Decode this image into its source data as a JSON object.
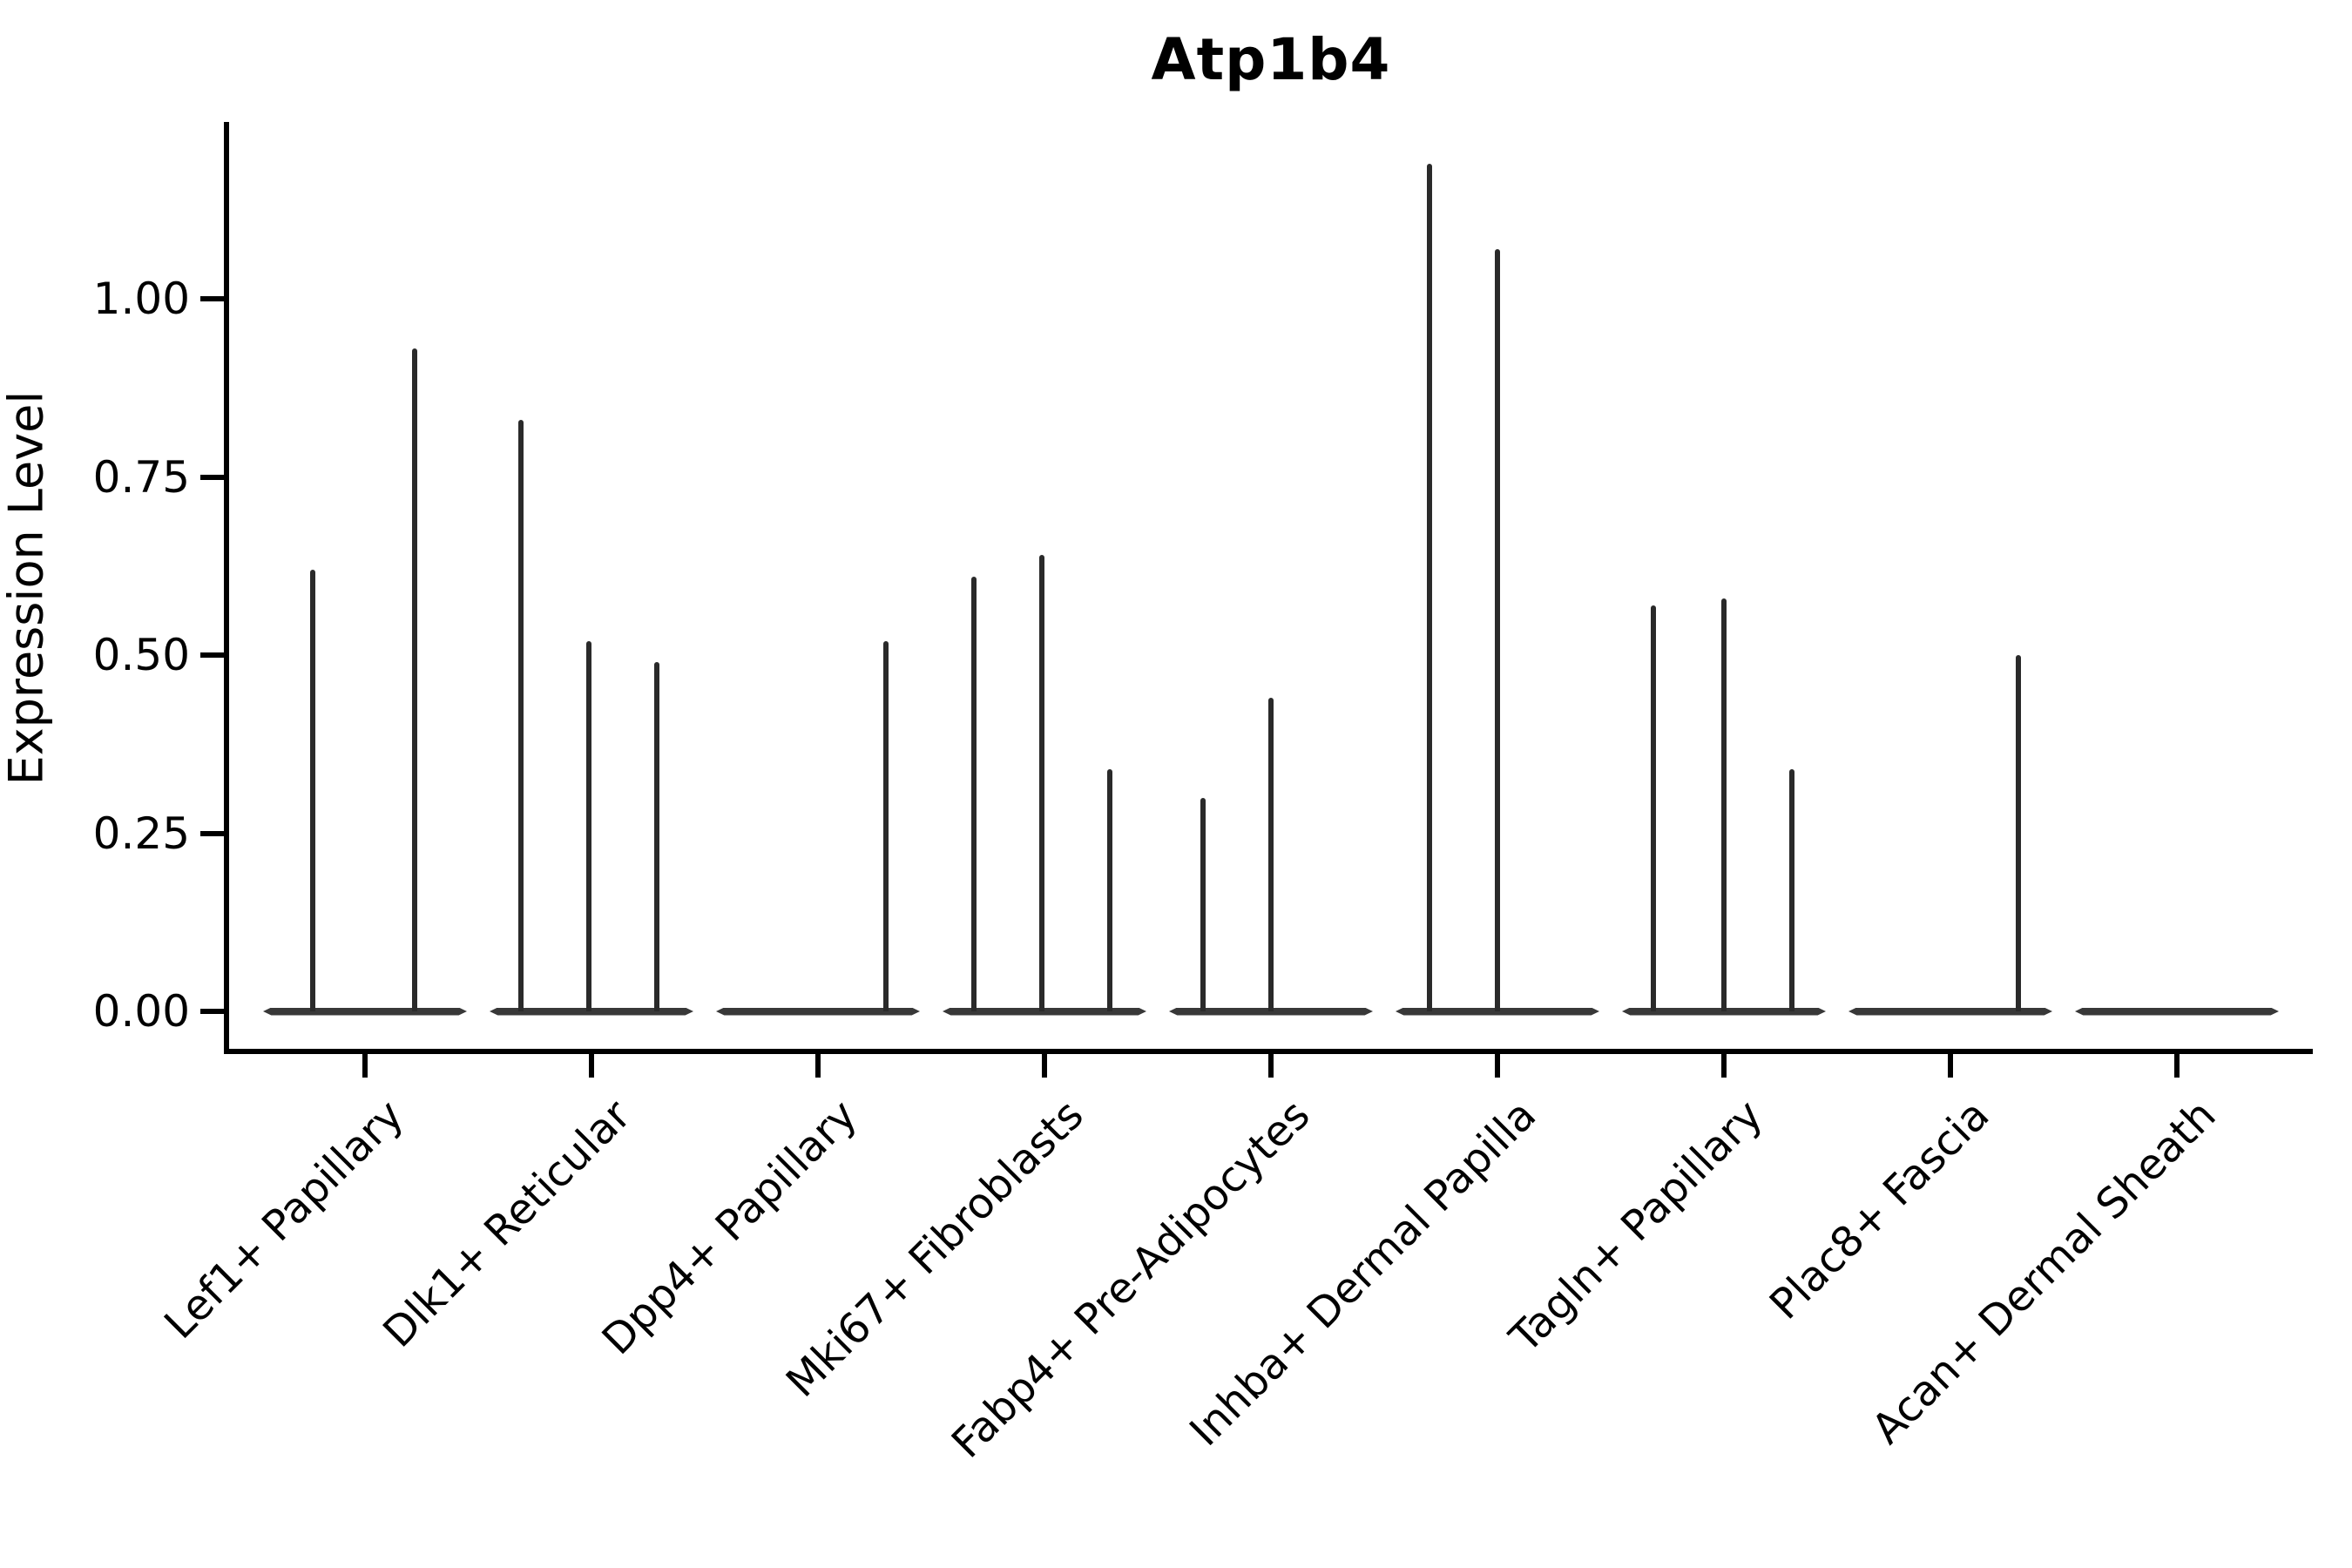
{
  "title": "Atp1b4",
  "colors": {
    "background": "#ffffff",
    "axis": "#000000",
    "text": "#000000",
    "violin_line": "#2a2a2a",
    "violin_baseline": "#383838"
  },
  "chart_data": {
    "type": "violin",
    "title": "Atp1b4",
    "xlabel": "",
    "ylabel": "Expression Level",
    "legend": "none",
    "grid": "off",
    "ylim": [
      -0.06,
      1.25
    ],
    "y_ticks": {
      "labels": [
        "0.00",
        "0.25",
        "0.50",
        "0.75",
        "1.00"
      ],
      "values": [
        0.0,
        0.25,
        0.5,
        0.75,
        1.0
      ]
    },
    "x_tick_rotation_deg": 45,
    "baseline_value": 0.0,
    "description": "Seurat-style violin plot of Atp1b4 expression; each cluster shows a flat violin at 0 with thin density spikes at positive expression values",
    "categories": [
      {
        "label": "Lef1+ Papillary",
        "spikes": [
          {
            "offset": -0.23,
            "value": 0.62
          },
          {
            "offset": 0.22,
            "value": 0.93
          }
        ]
      },
      {
        "label": "Dlk1+ Reticular",
        "spikes": [
          {
            "offset": -0.31,
            "value": 0.83
          },
          {
            "offset": -0.01,
            "value": 0.52
          },
          {
            "offset": 0.29,
            "value": 0.49
          }
        ]
      },
      {
        "label": "Dpp4+ Papillary",
        "spikes": [
          {
            "offset": 0.3,
            "value": 0.52
          }
        ]
      },
      {
        "label": "Mki67+ Fibroblasts",
        "spikes": [
          {
            "offset": -0.31,
            "value": 0.61
          },
          {
            "offset": -0.01,
            "value": 0.64
          },
          {
            "offset": 0.29,
            "value": 0.34
          }
        ]
      },
      {
        "label": "Fabp4+ Pre-Adipocytes",
        "spikes": [
          {
            "offset": -0.3,
            "value": 0.3
          },
          {
            "offset": 0.0,
            "value": 0.44
          }
        ]
      },
      {
        "label": "Inhba+ Dermal Papilla",
        "spikes": [
          {
            "offset": -0.3,
            "value": 1.19
          },
          {
            "offset": 0.0,
            "value": 1.07
          }
        ]
      },
      {
        "label": "Tagln+ Papillary",
        "spikes": [
          {
            "offset": -0.31,
            "value": 0.57
          },
          {
            "offset": 0.0,
            "value": 0.58
          },
          {
            "offset": 0.3,
            "value": 0.34
          }
        ]
      },
      {
        "label": "Plac8+ Fascia",
        "spikes": [
          {
            "offset": 0.3,
            "value": 0.5
          }
        ]
      },
      {
        "label": "Acan+ Dermal Sheath",
        "spikes": []
      }
    ]
  }
}
